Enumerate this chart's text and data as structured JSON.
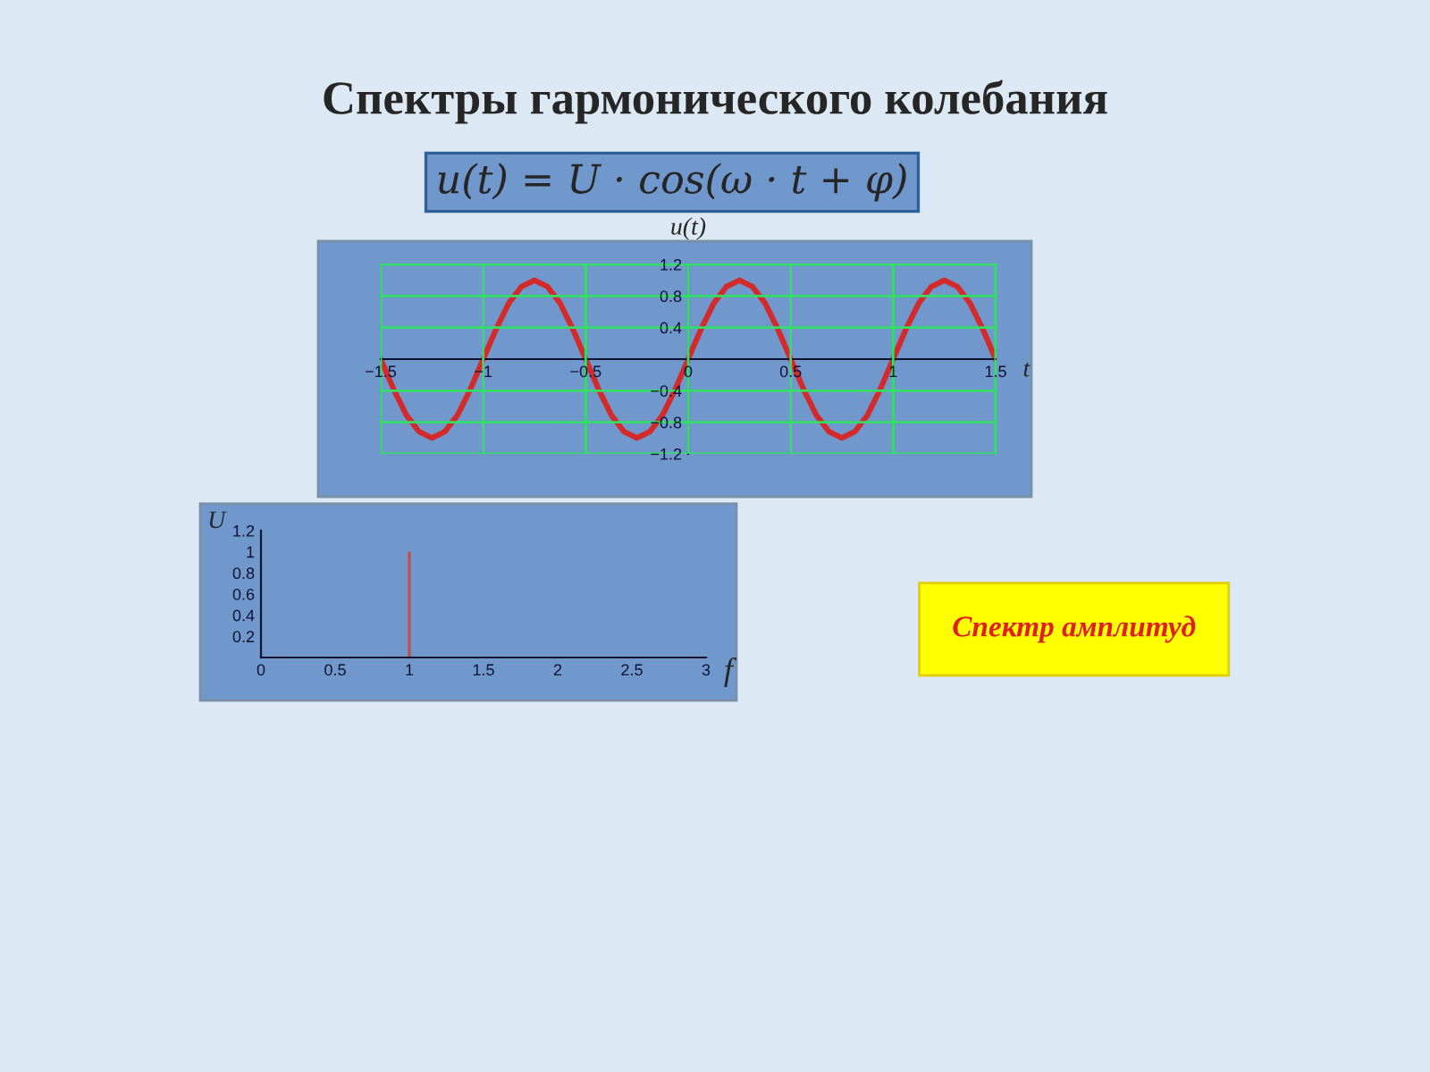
{
  "chart_data": [
    {
      "type": "line",
      "title": "Спектры гармонического колебания",
      "annotations": [
        "u(t) = U · cos(ω · t + φ)"
      ],
      "xlabel": "t",
      "ylabel": "u(t)",
      "x": [
        -1.5,
        -1.4375,
        -1.375,
        -1.3125,
        -1.25,
        -1.1875,
        -1.125,
        -1.0625,
        -1,
        -0.9375,
        -0.875,
        -0.8125,
        -0.75,
        -0.6875,
        -0.625,
        -0.5625,
        -0.5,
        -0.4375,
        -0.375,
        -0.3125,
        -0.25,
        -0.1875,
        -0.125,
        -0.0625,
        0,
        0.0625,
        0.125,
        0.1875,
        0.25,
        0.3125,
        0.375,
        0.4375,
        0.5,
        0.5625,
        0.625,
        0.6875,
        0.75,
        0.8125,
        0.875,
        0.9375,
        1,
        1.0625,
        1.125,
        1.1875,
        1.25,
        1.3125,
        1.375,
        1.4375,
        1.5
      ],
      "series": [
        {
          "color": "#d42a2a",
          "values": [
            0,
            -0.38,
            -0.71,
            -0.92,
            -1,
            -0.92,
            -0.71,
            -0.38,
            0,
            0.38,
            0.71,
            0.92,
            1,
            0.92,
            0.71,
            0.38,
            0,
            -0.38,
            -0.71,
            -0.92,
            -1,
            -0.92,
            -0.71,
            -0.38,
            0,
            0.38,
            0.71,
            0.92,
            1,
            0.92,
            0.71,
            0.38,
            0,
            -0.38,
            -0.71,
            -0.92,
            -1,
            -0.92,
            -0.71,
            -0.38,
            0,
            0.38,
            0.71,
            0.92,
            1,
            0.92,
            0.71,
            0.38,
            0
          ]
        }
      ],
      "xlim": [
        -1.5,
        1.5
      ],
      "ylim": [
        -1.2,
        1.2
      ],
      "xticks": [
        {
          "value": -1.5,
          "label": "−1.5"
        },
        {
          "value": -1,
          "label": "−1"
        },
        {
          "value": -0.5,
          "label": "−0.5"
        },
        0,
        0.5,
        1,
        1.5
      ],
      "yticks": [
        {
          "value": -1.2,
          "label": "−1.2"
        },
        {
          "value": -0.8,
          "label": "−0.8"
        },
        {
          "value": -0.4,
          "label": "−0.4"
        },
        0.4,
        0.8,
        1.2
      ],
      "grid": true,
      "line_style": "solid"
    },
    {
      "type": "bar",
      "annotations": [
        "Спектр амплитуд"
      ],
      "xlabel": "f",
      "ylabel": "U",
      "x": [
        1
      ],
      "series": [
        {
          "color": "#c0504d",
          "values": [
            1
          ]
        }
      ],
      "xlim": [
        0,
        3
      ],
      "ylim": [
        0,
        1.2
      ],
      "xticks": [
        0,
        0.5,
        1,
        1.5,
        2,
        2.5,
        3
      ],
      "yticks": [
        0.2,
        0.4,
        0.6,
        0.8,
        1,
        1.2
      ],
      "grid": false
    }
  ]
}
